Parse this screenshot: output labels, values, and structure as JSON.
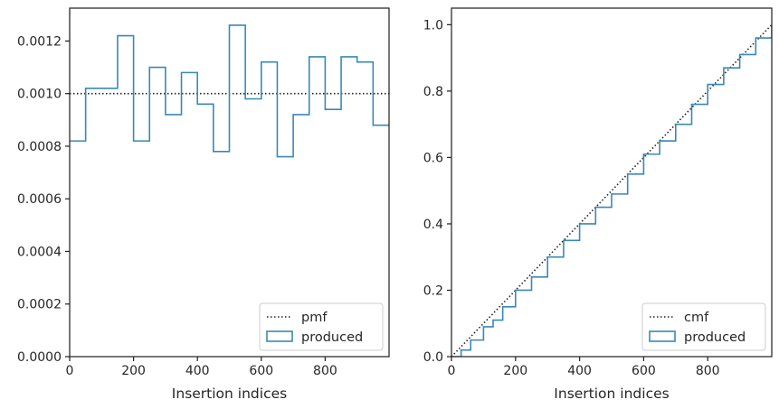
{
  "chart_data": [
    {
      "type": "histogram",
      "xlabel": "Insertion indices",
      "ylabel": "",
      "xlim": [
        0,
        1000
      ],
      "ylim": [
        0,
        0.001325
      ],
      "xticks": [
        0,
        200,
        400,
        600,
        800
      ],
      "yticks": [
        0.0,
        0.0002,
        0.0004,
        0.0006,
        0.0008,
        0.001,
        0.0012
      ],
      "ytick_labels": [
        "0.0000",
        "0.0002",
        "0.0004",
        "0.0006",
        "0.0008",
        "0.0010",
        "0.0012"
      ],
      "grid": false,
      "legend_position": "lower-right",
      "bin_edges": [
        0,
        50,
        100,
        150,
        200,
        250,
        300,
        350,
        400,
        450,
        500,
        550,
        600,
        650,
        700,
        750,
        800,
        850,
        900,
        950,
        1000
      ],
      "series": [
        {
          "name": "pmf",
          "style": "dotted",
          "color": "#222222",
          "y": 0.001
        },
        {
          "name": "produced",
          "style": "step",
          "color": "#3a88b8",
          "values": [
            0.00082,
            0.00102,
            0.00102,
            0.00122,
            0.00082,
            0.0011,
            0.00092,
            0.00108,
            0.00096,
            0.00078,
            0.00126,
            0.00098,
            0.00112,
            0.00076,
            0.00092,
            0.00114,
            0.00094,
            0.00114,
            0.00112,
            0.00088
          ]
        }
      ]
    },
    {
      "type": "line",
      "xlabel": "Insertion indices",
      "ylabel": "",
      "xlim": [
        0,
        1000
      ],
      "ylim": [
        0,
        1.05
      ],
      "xticks": [
        0,
        200,
        400,
        600,
        800
      ],
      "yticks": [
        0.0,
        0.2,
        0.4,
        0.6,
        0.8,
        1.0
      ],
      "ytick_labels": [
        "0.0",
        "0.2",
        "0.4",
        "0.6",
        "0.8",
        "1.0"
      ],
      "grid": false,
      "legend_position": "lower-right",
      "series": [
        {
          "name": "cmf",
          "style": "dotted",
          "color": "#222222",
          "x": [
            0,
            1000
          ],
          "y": [
            0,
            1.0
          ]
        },
        {
          "name": "produced",
          "style": "step",
          "color": "#3a88b8",
          "x": [
            0,
            30,
            60,
            100,
            130,
            160,
            200,
            250,
            300,
            350,
            400,
            450,
            500,
            550,
            600,
            650,
            700,
            750,
            800,
            850,
            900,
            950,
            1000
          ],
          "y": [
            0,
            0.02,
            0.05,
            0.09,
            0.11,
            0.15,
            0.2,
            0.24,
            0.3,
            0.35,
            0.4,
            0.45,
            0.49,
            0.55,
            0.61,
            0.65,
            0.7,
            0.76,
            0.82,
            0.87,
            0.91,
            0.96,
            1.0
          ]
        }
      ]
    }
  ]
}
